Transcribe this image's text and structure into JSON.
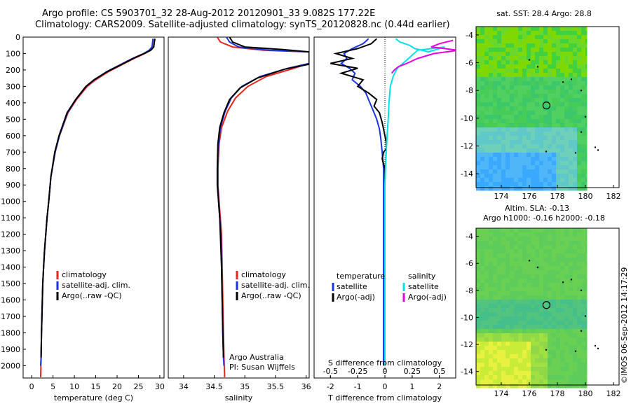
{
  "header": {
    "title_line1": "Argo profile: CS 5903701_32 28-Aug-2012 20120901_33 9.082S 177.22E",
    "title_line2": "Climatology: CARS2009. Satellite-adjusted climatology: synTS_20120828.nc (0.44d earlier)"
  },
  "footer": {
    "side_caption": "©IMOS 06-Sep-2012 14:17:29"
  },
  "colors": {
    "climatology": "#e8261a",
    "satellite": "#1a34e0",
    "argo": "#000000",
    "salinity_sat": "#00e0e8",
    "salinity_argo": "#e800e0"
  },
  "chart_data": [
    {
      "type": "line",
      "xlabel": "temperature (deg C)",
      "ylabel": "",
      "xlim": [
        -2,
        31
      ],
      "ylim": [
        2075,
        0
      ],
      "xticks": [
        0,
        5,
        10,
        15,
        20,
        25,
        30
      ],
      "yticks": [
        0,
        100,
        200,
        300,
        400,
        500,
        600,
        700,
        800,
        900,
        1000,
        1100,
        1200,
        1300,
        1400,
        1500,
        1600,
        1700,
        1800,
        1900,
        2000
      ],
      "legend": [
        "climatology",
        "satellite-adj. clim.",
        "Argo(..raw -QC)"
      ],
      "series": [
        {
          "name": "climatology",
          "color": "#e8261a",
          "x": [
            28.9,
            28.5,
            27.8,
            26.5,
            24.0,
            21.0,
            18.0,
            15.0,
            13.0,
            10.5,
            8.5,
            6.5,
            5.5,
            4.5,
            4.0,
            3.6,
            3.3,
            3.0,
            2.8,
            2.6,
            2.5,
            2.4,
            2.3,
            2.2,
            2.1
          ],
          "y": [
            10,
            60,
            80,
            100,
            130,
            170,
            210,
            260,
            300,
            380,
            460,
            600,
            700,
            850,
            1000,
            1100,
            1200,
            1300,
            1400,
            1500,
            1600,
            1700,
            1800,
            1950,
            2070
          ]
        },
        {
          "name": "satellite-adj. clim.",
          "color": "#1a34e0",
          "x": [
            28.4,
            28.2,
            27.5,
            26.2,
            23.6,
            20.6,
            17.6,
            14.7,
            12.8,
            10.3,
            8.4,
            6.5,
            5.5,
            4.5,
            4.0,
            3.6,
            3.3,
            3.0,
            2.8,
            2.6,
            2.5,
            2.4,
            2.3,
            2.2,
            2.1
          ],
          "y": [
            10,
            60,
            80,
            100,
            130,
            170,
            210,
            260,
            300,
            380,
            460,
            600,
            700,
            850,
            1000,
            1100,
            1200,
            1300,
            1400,
            1500,
            1600,
            1700,
            1800,
            1950,
            2000
          ]
        },
        {
          "name": "Argo(..raw -QC)",
          "color": "#000000",
          "x": [
            28.8,
            28.6,
            27.9,
            26.3,
            23.8,
            20.8,
            17.7,
            14.6,
            12.7,
            10.3,
            8.3,
            6.4,
            5.4,
            4.5,
            4.0,
            3.6,
            3.3,
            3.0,
            2.8,
            2.6,
            2.5,
            2.4,
            2.3,
            2.2
          ],
          "y": [
            10,
            60,
            80,
            100,
            130,
            170,
            210,
            260,
            300,
            380,
            460,
            600,
            700,
            850,
            1000,
            1100,
            1200,
            1300,
            1400,
            1500,
            1600,
            1700,
            1800,
            1950
          ]
        }
      ]
    },
    {
      "type": "line",
      "xlabel": "salinity",
      "xlim": [
        33.75,
        36.05
      ],
      "ylim": [
        2075,
        0
      ],
      "xticks": [
        34,
        34.5,
        35,
        35.5,
        36
      ],
      "xticklabels": [
        "34",
        "34.5",
        "35",
        "35.5",
        "36"
      ],
      "legend": [
        "climatology",
        "satellite-adj. clim.",
        "Argo(..raw -QC)"
      ],
      "annotation": [
        "Argo Australia",
        "PI: Susan Wijffels"
      ],
      "series": [
        {
          "name": "climatology",
          "color": "#e8261a",
          "x": [
            34.55,
            34.6,
            34.8,
            35.3,
            36.05,
            36.05,
            36.05,
            35.8,
            35.35,
            35.05,
            34.85,
            34.72,
            34.62,
            34.58,
            34.56,
            34.56,
            34.58,
            34.6,
            34.62,
            34.63,
            34.64,
            34.65,
            34.66,
            34.67
          ],
          "y": [
            0,
            30,
            60,
            80,
            90,
            120,
            160,
            190,
            240,
            300,
            370,
            450,
            550,
            650,
            800,
            900,
            1000,
            1100,
            1200,
            1400,
            1600,
            1800,
            1950,
            2070
          ]
        },
        {
          "name": "satellite-adj. clim.",
          "color": "#1a34e0",
          "x": [
            34.7,
            34.75,
            34.9,
            35.4,
            36.05,
            36.05,
            36.05,
            35.7,
            35.25,
            34.95,
            34.78,
            34.68,
            34.6,
            34.57,
            34.56,
            34.56,
            34.57,
            34.59,
            34.61,
            34.62,
            34.63,
            34.64,
            34.65,
            34.66
          ],
          "y": [
            0,
            30,
            60,
            80,
            90,
            120,
            160,
            190,
            240,
            300,
            370,
            450,
            550,
            650,
            800,
            900,
            1000,
            1100,
            1200,
            1400,
            1600,
            1800,
            1950,
            2000
          ]
        },
        {
          "name": "Argo(..raw -QC)",
          "color": "#000000",
          "x": [
            34.75,
            34.8,
            35.0,
            35.6,
            36.05,
            36.05,
            36.05,
            35.65,
            35.2,
            34.92,
            34.75,
            34.66,
            34.59,
            34.56,
            34.55,
            34.55,
            34.57,
            34.59,
            34.6,
            34.62,
            34.63,
            34.64,
            34.65
          ],
          "y": [
            0,
            30,
            60,
            75,
            90,
            110,
            165,
            195,
            250,
            310,
            380,
            460,
            550,
            650,
            800,
            900,
            1000,
            1100,
            1200,
            1400,
            1600,
            1800,
            1950
          ]
        }
      ]
    },
    {
      "type": "line",
      "xlabel": "T difference from climatology",
      "xlabel_top": "S difference from climatology",
      "xlim": [
        -2.6,
        2.6
      ],
      "ylim": [
        2075,
        0
      ],
      "xticks": [
        -2,
        -1,
        0,
        1,
        2
      ],
      "xticks_top": [
        -0.5,
        -0.25,
        0,
        0.25,
        0.5
      ],
      "legend_temperature": [
        "temperature",
        "satellite",
        "Argo(-adj)"
      ],
      "legend_salinity": [
        "salinity",
        "satellite",
        "Argo(-adj)"
      ],
      "series": [
        {
          "name": "temperature satellite",
          "color": "#1a34e0",
          "x": [
            -0.6,
            -0.8,
            -1.2,
            -1.5,
            -1.4,
            -1.6,
            -1.3,
            -1.1,
            -1.2,
            -0.9,
            -0.7,
            -0.6,
            -0.5,
            -0.4,
            -0.3,
            -0.2,
            -0.15,
            -0.1,
            -0.05,
            -0.05,
            -0.05
          ],
          "y": [
            10,
            40,
            70,
            100,
            130,
            160,
            190,
            220,
            260,
            300,
            340,
            380,
            420,
            460,
            500,
            560,
            620,
            700,
            800,
            1000,
            2000
          ]
        },
        {
          "name": "temperature Argo(-adj)",
          "color": "#000000",
          "x": [
            -0.3,
            -0.5,
            -1.0,
            -1.8,
            -1.2,
            -2.0,
            -1.0,
            -1.6,
            -0.8,
            -1.0,
            -0.6,
            -0.3,
            -0.4,
            -0.2,
            -0.1,
            -0.05,
            0.0,
            0.05,
            0.05,
            -0.05,
            -0.1,
            0.0,
            0.0
          ],
          "y": [
            10,
            40,
            70,
            100,
            130,
            160,
            190,
            220,
            260,
            300,
            340,
            380,
            420,
            460,
            520,
            560,
            600,
            640,
            680,
            700,
            740,
            800,
            1950
          ]
        },
        {
          "name": "salinity satellite",
          "color": "#00e0e8",
          "x": [
            0.4,
            0.55,
            0.9,
            1.1,
            1.6,
            2.2,
            1.2,
            0.8,
            0.45,
            0.3,
            0.2,
            0.15,
            0.12,
            0.08,
            0.05,
            0.02,
            0.0,
            0.0
          ],
          "y": [
            10,
            30,
            50,
            70,
            90,
            60,
            80,
            140,
            190,
            240,
            300,
            400,
            500,
            600,
            700,
            800,
            900,
            2000
          ]
        },
        {
          "name": "salinity Argo(-adj)",
          "color": "#e800e0",
          "x": [
            2.5,
            2.0,
            1.7,
            2.7,
            1.8,
            1.2,
            0.8,
            0.5,
            0.35,
            0.25
          ],
          "y": [
            20,
            40,
            60,
            80,
            100,
            130,
            160,
            180,
            200,
            220
          ]
        }
      ]
    },
    {
      "type": "heatmap",
      "title": "sat. SST: 28.4  Argo: 28.8",
      "xlim": [
        172.2,
        182.4
      ],
      "ylim": [
        -15,
        -3.4
      ],
      "xticks": [
        174,
        176,
        178,
        180,
        182
      ],
      "yticks": [
        -4,
        -6,
        -8,
        -10,
        -12,
        -14
      ],
      "marker": {
        "x": 177.22,
        "y": -9.082
      }
    },
    {
      "type": "heatmap",
      "title": "Altim. SLA: -0.13",
      "subtitle": "Argo h1000: -0.16 h2000: -0.18",
      "xlim": [
        172.2,
        182.4
      ],
      "ylim": [
        -15,
        -3.4
      ],
      "xticks": [
        174,
        176,
        178,
        180,
        182
      ],
      "yticks": [
        -4,
        -6,
        -8,
        -10,
        -12,
        -14
      ],
      "marker": {
        "x": 177.22,
        "y": -9.082
      }
    }
  ]
}
